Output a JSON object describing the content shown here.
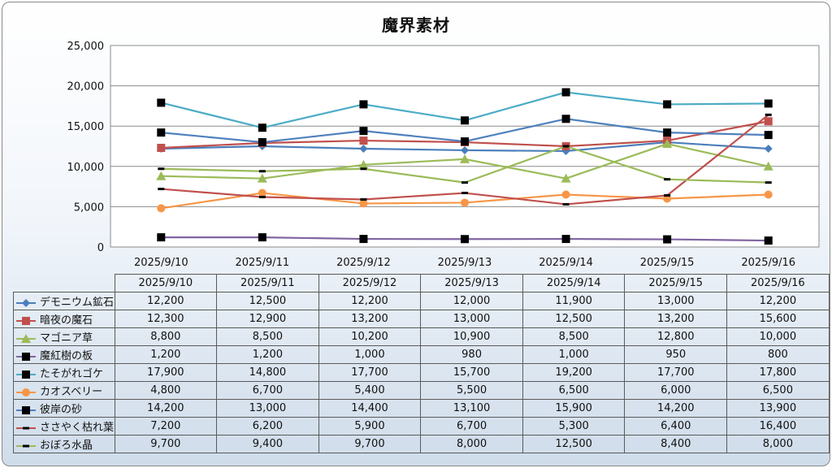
{
  "chart_data": {
    "type": "line",
    "title": "魔界素材",
    "categories": [
      "2025/9/10",
      "2025/9/11",
      "2025/9/12",
      "2025/9/13",
      "2025/9/14",
      "2025/9/15",
      "2025/9/16"
    ],
    "ylim": [
      0,
      25000
    ],
    "yticks": [
      "0",
      "5,000",
      "10,000",
      "15,000",
      "20,000",
      "25,000"
    ],
    "grid": true,
    "legend": "data-table",
    "series": [
      {
        "name": "デモニウム鉱石",
        "values": [
          12200,
          12500,
          12200,
          12000,
          11900,
          13000,
          12200
        ],
        "display": [
          "12,200",
          "12,500",
          "12,200",
          "12,000",
          "11,900",
          "13,000",
          "12,200"
        ],
        "color": "#4a7ebb",
        "marker": "diamond"
      },
      {
        "name": "暗夜の魔石",
        "values": [
          12300,
          12900,
          13200,
          13000,
          12500,
          13200,
          15600
        ],
        "display": [
          "12,300",
          "12,900",
          "13,200",
          "13,000",
          "12,500",
          "13,200",
          "15,600"
        ],
        "color": "#c0504d",
        "marker": "square"
      },
      {
        "name": "マゴニア草",
        "values": [
          8800,
          8500,
          10200,
          10900,
          8500,
          12800,
          10000
        ],
        "display": [
          "8,800",
          "8,500",
          "10,200",
          "10,900",
          "8,500",
          "12,800",
          "10,000"
        ],
        "color": "#9bbb59",
        "marker": "triangle"
      },
      {
        "name": "魔紅樹の板",
        "values": [
          1200,
          1200,
          1000,
          980,
          1000,
          950,
          800
        ],
        "display": [
          "1,200",
          "1,200",
          "1,000",
          "980",
          "1,000",
          "950",
          "800"
        ],
        "color": "#8064a2",
        "marker": "square-black"
      },
      {
        "name": "たそがれゴケ",
        "values": [
          17900,
          14800,
          17700,
          15700,
          19200,
          17700,
          17800
        ],
        "display": [
          "17,900",
          "14,800",
          "17,700",
          "15,700",
          "19,200",
          "17,700",
          "17,800"
        ],
        "color": "#4bacc6",
        "marker": "square-black"
      },
      {
        "name": "カオスベリー",
        "values": [
          4800,
          6700,
          5400,
          5500,
          6500,
          6000,
          6500
        ],
        "display": [
          "4,800",
          "6,700",
          "5,400",
          "5,500",
          "6,500",
          "6,000",
          "6,500"
        ],
        "color": "#f79646",
        "marker": "circle"
      },
      {
        "name": "彼岸の砂",
        "values": [
          14200,
          13000,
          14400,
          13100,
          15900,
          14200,
          13900
        ],
        "display": [
          "14,200",
          "13,000",
          "14,400",
          "13,100",
          "15,900",
          "14,200",
          "13,900"
        ],
        "color": "#4f81bd",
        "marker": "square-black"
      },
      {
        "name": "ささやく枯れ葉",
        "values": [
          7200,
          6200,
          5900,
          6700,
          5300,
          6400,
          16400
        ],
        "display": [
          "7,200",
          "6,200",
          "5,900",
          "6,700",
          "5,300",
          "6,400",
          "16,400"
        ],
        "color": "#c0504d",
        "marker": "dash"
      },
      {
        "name": "おぼろ水晶",
        "values": [
          9700,
          9400,
          9700,
          8000,
          12500,
          8400,
          8000
        ],
        "display": [
          "9,700",
          "9,400",
          "9,700",
          "8,000",
          "12,500",
          "8,400",
          "8,000"
        ],
        "color": "#9bbb59",
        "marker": "dash"
      }
    ]
  }
}
